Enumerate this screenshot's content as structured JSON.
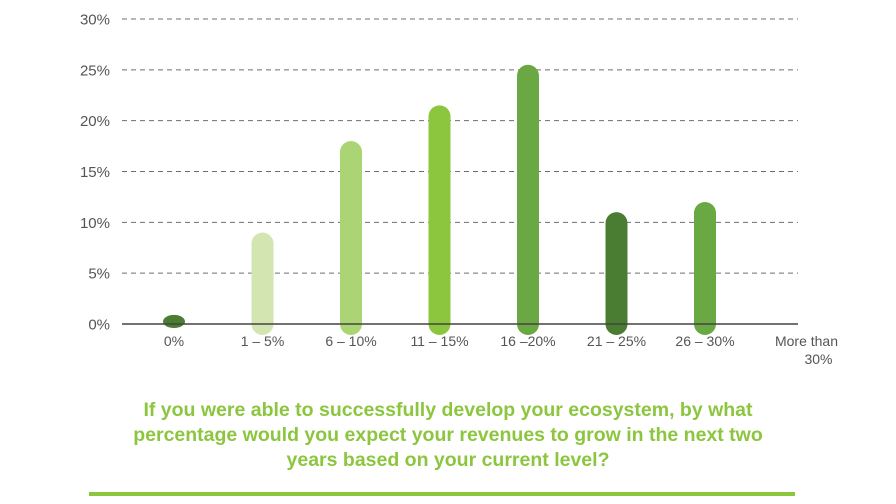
{
  "chart_data": {
    "type": "bar",
    "categories": [
      "0%",
      "1 – 5%",
      "6 – 10%",
      "11 – 15%",
      "16 –20%",
      "21 – 25%",
      "26 – 30%",
      "More than 30%"
    ],
    "category_lines": [
      [
        "0%"
      ],
      [
        "1 – 5%"
      ],
      [
        "6 – 10%"
      ],
      [
        "11 – 15%"
      ],
      [
        "16 –20%"
      ],
      [
        "21 – 25%"
      ],
      [
        "26 – 30%"
      ],
      [
        "More than",
        "30%"
      ]
    ],
    "values": [
      0.5,
      9,
      18,
      21.5,
      25.5,
      11,
      12,
      0
    ],
    "bar_colors": [
      "#4a7c31",
      "#d3e6b2",
      "#abd575",
      "#8cc63f",
      "#6aa844",
      "#4a7c31",
      "#6aa844",
      "#6aa844"
    ],
    "y_ticks": [
      "0%",
      "5%",
      "10%",
      "15%",
      "20%",
      "25%",
      "30%"
    ],
    "ylim": [
      0,
      30
    ],
    "grid": true,
    "grid_style": "dashed",
    "title": "",
    "xlabel": "",
    "ylabel": ""
  },
  "question": {
    "lines": [
      "If you were able to successfully develop your ecosystem, by what",
      "percentage would you expect your revenues to grow in the next two",
      "years based on your current level?"
    ]
  }
}
